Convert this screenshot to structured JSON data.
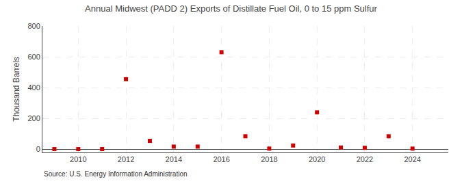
{
  "chart_data": {
    "type": "scatter",
    "title": "Annual Midwest (PADD 2) Exports of Distillate Fuel Oil, 0 to 15 ppm Sulfur",
    "ylabel": "Thousand Barrels",
    "annotations": [
      "Source: U.S. Energy Information Administration"
    ],
    "x": [
      2009,
      2010,
      2011,
      2012,
      2013,
      2014,
      2015,
      2016,
      2017,
      2018,
      2019,
      2020,
      2021,
      2022,
      2023,
      2024
    ],
    "values": [
      2,
      2,
      2,
      455,
      55,
      18,
      18,
      630,
      85,
      5,
      25,
      240,
      12,
      10,
      85,
      5
    ],
    "color": "#cc0000",
    "marker": "square",
    "xlim": [
      2008.5,
      2025.5
    ],
    "xticks": [
      2010,
      2012,
      2014,
      2016,
      2018,
      2020,
      2022,
      2024
    ],
    "ylim": [
      -20,
      800
    ],
    "yticks": [
      0,
      200,
      400,
      600,
      800
    ],
    "grid": true
  }
}
